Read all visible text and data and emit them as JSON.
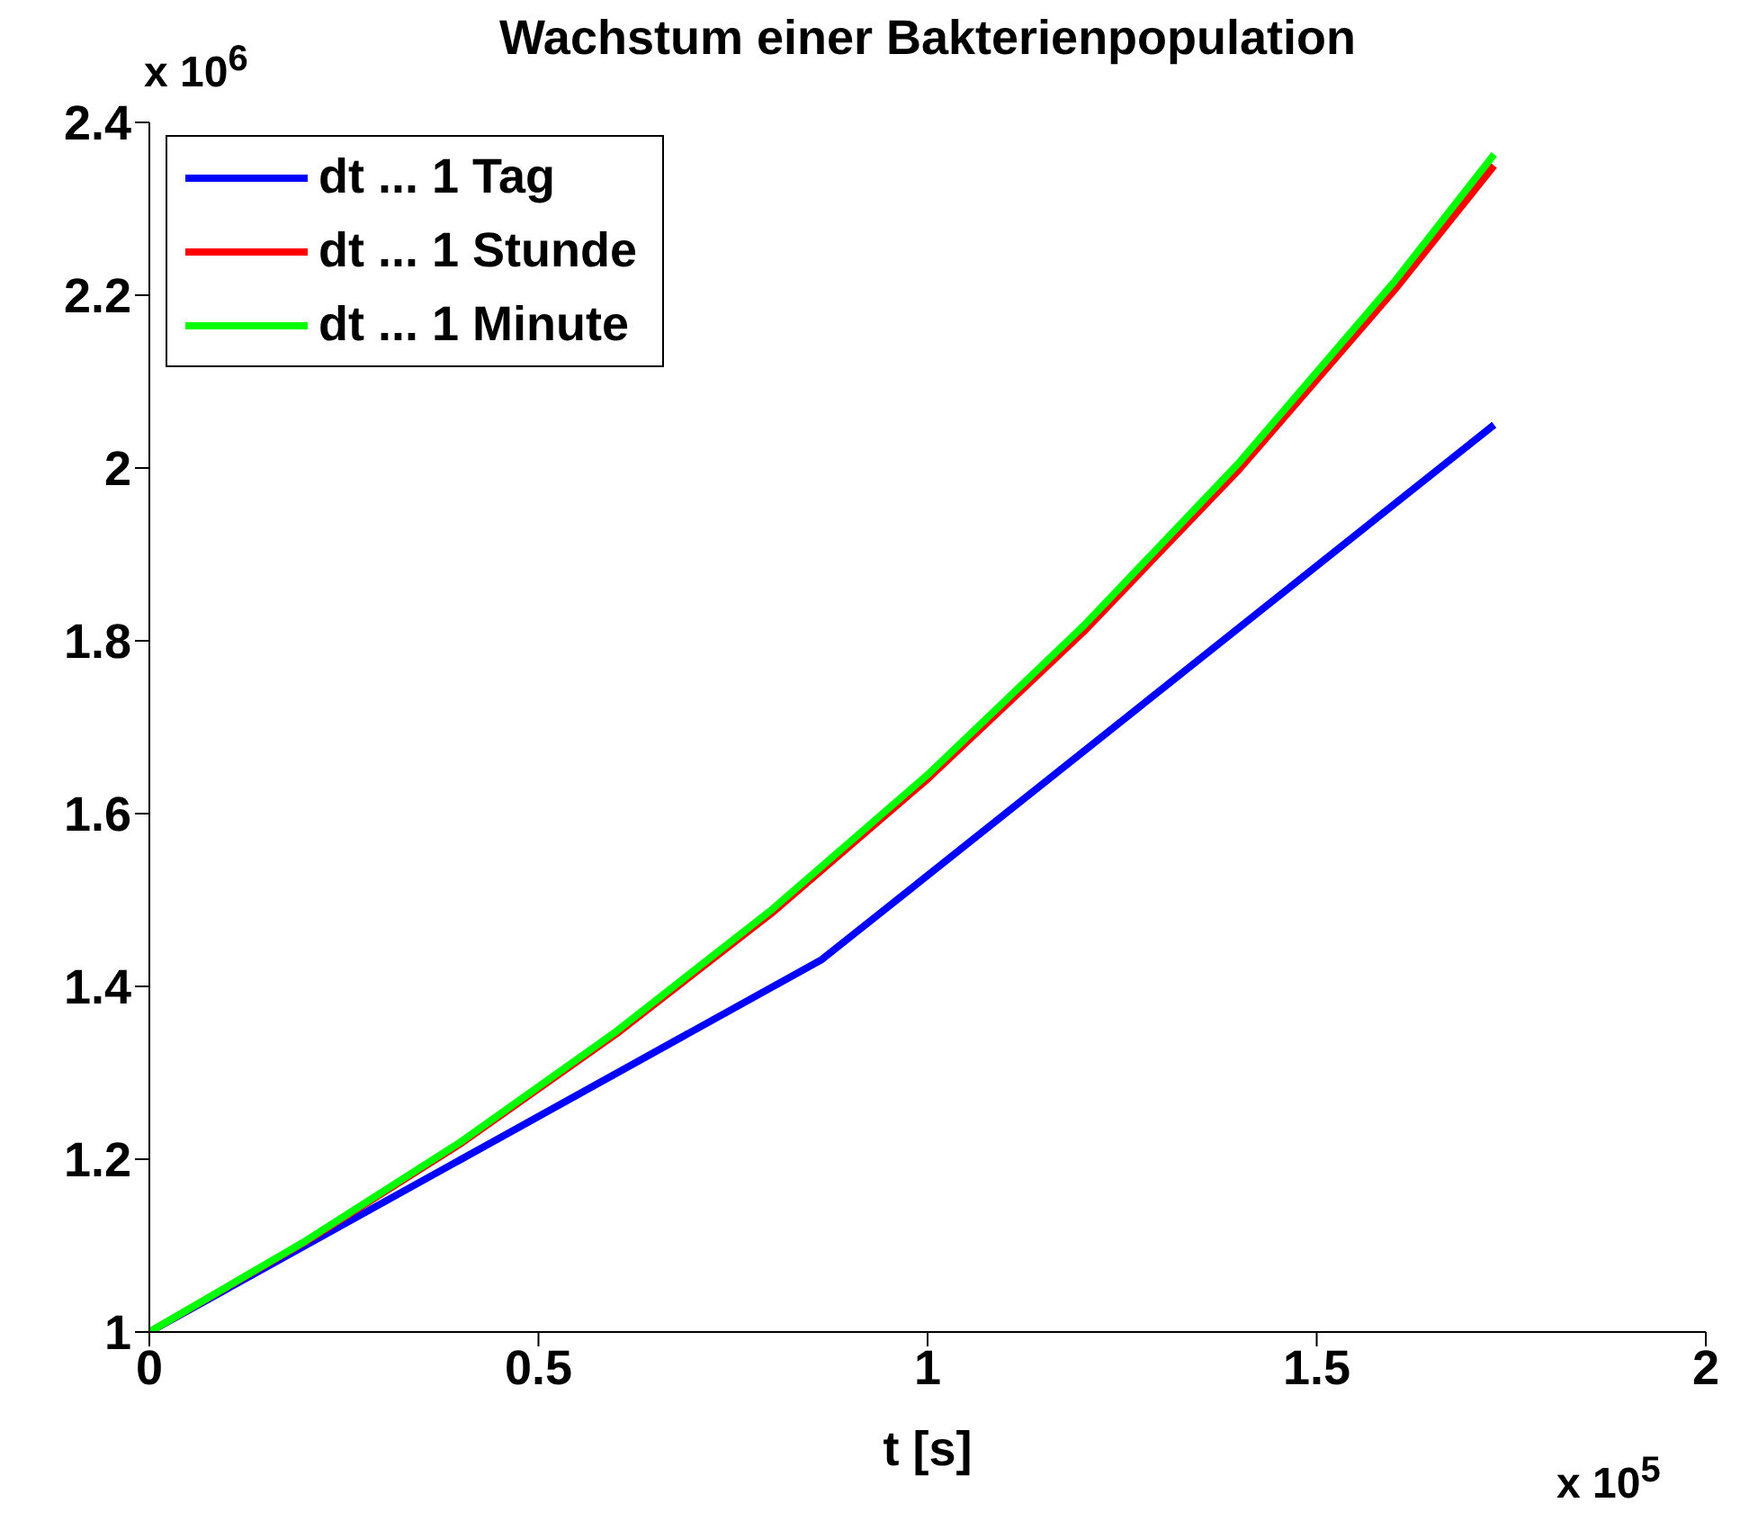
{
  "chart_data": {
    "type": "line",
    "title": "Wachstum einer Bakterienpopulation",
    "xlabel": "t  [s]",
    "annotations": [
      "x 10$^{6}$",
      "x 10$^{5}$"
    ],
    "series": [
      {
        "name": "dt ... 1 Tag",
        "color": "#0000ff",
        "x": [
          0,
          0.864,
          1.728
        ],
        "values": [
          1,
          1.431,
          2.05
        ]
      },
      {
        "name": "dt ... 1 Stunde",
        "color": "#ff0000",
        "x": [
          0,
          0.2,
          0.4,
          0.6,
          0.8,
          1.0,
          1.2,
          1.4,
          1.6,
          1.728
        ],
        "values": [
          1,
          1.104,
          1.218,
          1.345,
          1.485,
          1.64,
          1.81,
          1.998,
          2.206,
          2.35
        ]
      },
      {
        "name": "dt ... 1 Minute",
        "color": "#00ff00",
        "x": [
          0,
          0.2,
          0.4,
          0.6,
          0.8,
          1.0,
          1.2,
          1.4,
          1.6,
          1.728
        ],
        "values": [
          1,
          1.105,
          1.22,
          1.348,
          1.489,
          1.645,
          1.817,
          2.006,
          2.216,
          2.363
        ]
      }
    ],
    "xlim": [
      0,
      2
    ],
    "xticks": [
      0,
      0.5,
      1,
      1.5,
      2
    ],
    "ylim": [
      1,
      2.4
    ],
    "yticks": [
      1,
      1.2,
      1.4,
      1.6,
      1.8,
      2,
      2.2,
      2.4
    ],
    "grid": false,
    "legend": "top left",
    "marker": "none",
    "line_style": "solid"
  }
}
